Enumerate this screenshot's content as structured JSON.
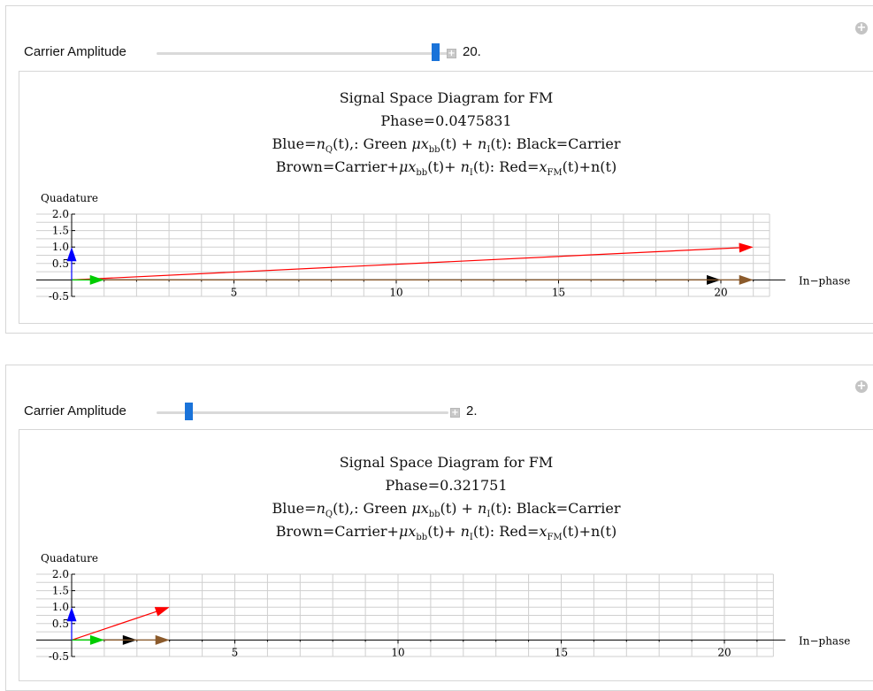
{
  "panels": [
    {
      "control": {
        "label": "Carrier Amplitude",
        "value": "20.",
        "slider_fraction": 0.93
      },
      "plot": {
        "title": "Signal Space Diagram for FM",
        "phase": "Phase=0.0475831",
        "legend_line1": {
          "a": "Blue=",
          "b": "n",
          "bsub": "Q",
          "c": "(t),: Green ",
          "d": "μx",
          "dsub": "bb",
          "e": "(t) + ",
          "f": "n",
          "fsub": "I",
          "g": "(t): Black=Carrier"
        },
        "legend_line2": {
          "a": "Brown=Carrier+",
          "b": "μx",
          "bsub": "bb",
          "c": "(t)+ ",
          "d": "n",
          "dsub": "I",
          "e": "(t): Red=",
          "f": "x",
          "fsub": "FM",
          "g": "(t)+n(t)"
        }
      }
    },
    {
      "control": {
        "label": "Carrier Amplitude",
        "value": "2.",
        "slider_fraction": 0.11
      },
      "plot": {
        "title": "Signal Space Diagram for FM",
        "phase": "Phase=0.321751",
        "legend_line1": {
          "a": "Blue=",
          "b": "n",
          "bsub": "Q",
          "c": "(t),: Green ",
          "d": "μx",
          "dsub": "bb",
          "e": "(t) + ",
          "f": "n",
          "fsub": "I",
          "g": "(t): Black=Carrier"
        },
        "legend_line2": {
          "a": "Brown=Carrier+",
          "b": "μx",
          "bsub": "bb",
          "c": "(t)+ ",
          "d": "n",
          "dsub": "I",
          "e": "(t): Red=",
          "f": "x",
          "fsub": "FM",
          "g": "(t)+n(t)"
        }
      }
    }
  ],
  "chart_data": [
    {
      "type": "vector",
      "xlabel": "In−phase",
      "ylabel": "Quadature",
      "xlim": [
        0,
        21.5
      ],
      "ylim": [
        -0.5,
        2.0
      ],
      "xticks": [
        5,
        10,
        15,
        20
      ],
      "yticks": [
        -0.5,
        0.5,
        1.0,
        1.5,
        2.0
      ],
      "colors": {
        "blue": "#0000ff",
        "green": "#00cc00",
        "black": "#000000",
        "brown": "#8b5a2b",
        "red": "#ff0000"
      },
      "vectors": [
        {
          "name": "Blue",
          "from": [
            0,
            0
          ],
          "to": [
            0,
            1.0
          ]
        },
        {
          "name": "Green",
          "from": [
            0,
            0
          ],
          "to": [
            1.0,
            0
          ]
        },
        {
          "name": "Black",
          "from": [
            0,
            0
          ],
          "to": [
            20,
            0
          ]
        },
        {
          "name": "Brown",
          "from": [
            0,
            0
          ],
          "to": [
            21,
            0
          ]
        },
        {
          "name": "Red",
          "from": [
            0,
            0
          ],
          "to": [
            21,
            1.0
          ]
        }
      ]
    },
    {
      "type": "vector",
      "xlabel": "In−phase",
      "ylabel": "Quadature",
      "xlim": [
        0,
        21.5
      ],
      "ylim": [
        -0.5,
        2.0
      ],
      "xticks": [
        5,
        10,
        15,
        20
      ],
      "yticks": [
        -0.5,
        0.5,
        1.0,
        1.5,
        2.0
      ],
      "colors": {
        "blue": "#0000ff",
        "green": "#00cc00",
        "black": "#000000",
        "brown": "#8b5a2b",
        "red": "#ff0000"
      },
      "vectors": [
        {
          "name": "Blue",
          "from": [
            0,
            0
          ],
          "to": [
            0,
            1.0
          ]
        },
        {
          "name": "Green",
          "from": [
            0,
            0
          ],
          "to": [
            1.0,
            0
          ]
        },
        {
          "name": "Black",
          "from": [
            0,
            0
          ],
          "to": [
            2,
            0
          ]
        },
        {
          "name": "Brown",
          "from": [
            0,
            0
          ],
          "to": [
            3,
            0
          ]
        },
        {
          "name": "Red",
          "from": [
            0,
            0
          ],
          "to": [
            3,
            1.0
          ]
        }
      ]
    }
  ]
}
